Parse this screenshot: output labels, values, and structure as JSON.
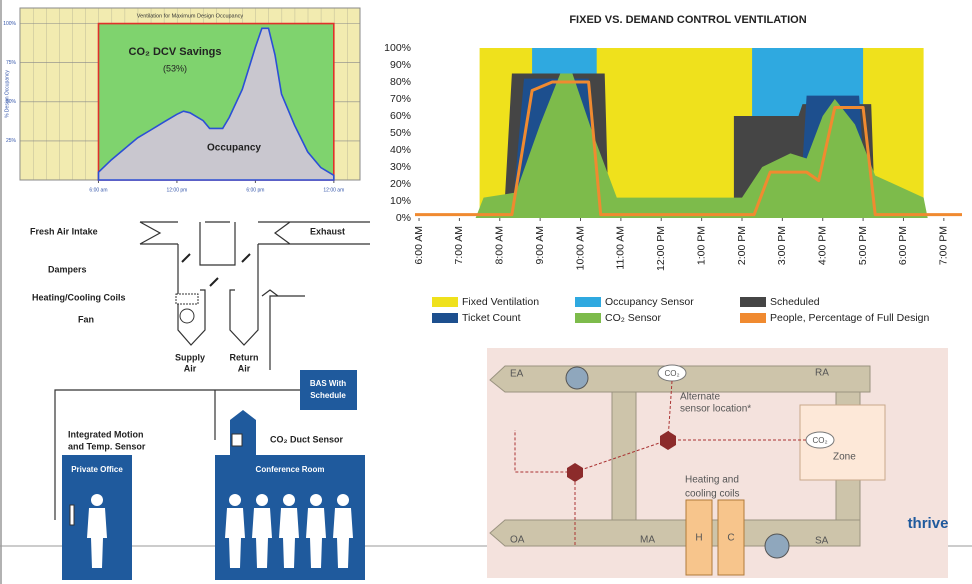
{
  "chart_data": [
    {
      "type": "area",
      "title": "Ventilation for Maximum Design Occupancy",
      "y_label": "% Design Occupancy",
      "annotations": [
        "CO₂ DCV Savings",
        "(53%)",
        "Occupancy"
      ],
      "xlim": [
        0,
        26
      ],
      "ylim": [
        0,
        110
      ],
      "xticks": [
        {
          "value": 6,
          "label": "6:00 am"
        },
        {
          "value": 12,
          "label": "12:00 pm"
        },
        {
          "value": 18,
          "label": "6:00 pm"
        },
        {
          "value": 24,
          "label": "12:00 am"
        }
      ],
      "yticks": [
        {
          "value": 25,
          "label": "25%"
        },
        {
          "value": 50,
          "label": "50%"
        },
        {
          "value": 75,
          "label": "75%"
        },
        {
          "value": 100,
          "label": "100%"
        }
      ],
      "grid": true,
      "series": [
        {
          "color": "#7fd36e",
          "edge": "#e0302a",
          "x": [
            6,
            6,
            24,
            24
          ],
          "values": [
            0,
            100,
            100,
            0
          ]
        },
        {
          "color": "#c9c7cf",
          "edge": "#2b4fd6",
          "x": [
            6,
            7,
            8,
            9,
            10,
            11,
            12,
            12.5,
            13,
            14,
            14.5,
            15.5,
            16,
            17,
            18,
            18.5,
            19,
            19.5,
            20,
            21,
            22,
            23,
            24
          ],
          "values": [
            5,
            13,
            20,
            27,
            32,
            37,
            42,
            44,
            43,
            38,
            33,
            33,
            40,
            58,
            85,
            97,
            97,
            80,
            55,
            35,
            18,
            8,
            3
          ]
        }
      ]
    },
    {
      "type": "area",
      "title": "FIXED VS. DEMAND CONTROL VENTILATION",
      "xlim": [
        5.9,
        19.45
      ],
      "ylim": [
        0,
        100
      ],
      "grid": false,
      "xticks": [
        {
          "value": 6,
          "label": "6:00 AM"
        },
        {
          "value": 7,
          "label": "7:00 AM"
        },
        {
          "value": 8,
          "label": "8:00 AM"
        },
        {
          "value": 9,
          "label": "9:00 AM"
        },
        {
          "value": 10,
          "label": "10:00 AM"
        },
        {
          "value": 11,
          "label": "11:00 AM"
        },
        {
          "value": 12,
          "label": "12:00 PM"
        },
        {
          "value": 13,
          "label": "1:00 PM"
        },
        {
          "value": 14,
          "label": "2:00 PM"
        },
        {
          "value": 15,
          "label": "3:00 PM"
        },
        {
          "value": 16,
          "label": "4:00 PM"
        },
        {
          "value": 17,
          "label": "5:00 PM"
        },
        {
          "value": 18,
          "label": "6:00 PM"
        },
        {
          "value": 19,
          "label": "7:00 PM"
        }
      ],
      "yticks": [
        {
          "value": 0,
          "label": "0%"
        },
        {
          "value": 10,
          "label": "10%"
        },
        {
          "value": 20,
          "label": "20%"
        },
        {
          "value": 30,
          "label": "30%"
        },
        {
          "value": 40,
          "label": "40%"
        },
        {
          "value": 50,
          "label": "50%"
        },
        {
          "value": 60,
          "label": "60%"
        },
        {
          "value": 70,
          "label": "70%"
        },
        {
          "value": 80,
          "label": "80%"
        },
        {
          "value": 90,
          "label": "90%"
        },
        {
          "value": 100,
          "label": "100%"
        }
      ],
      "series": [
        {
          "name": "Fixed Ventilation",
          "color": "#efe11c",
          "x": [
            5.9,
            7.5,
            7.5,
            18.5,
            18.5,
            19.45
          ],
          "values": [
            0,
            0,
            100,
            100,
            0,
            0
          ]
        },
        {
          "name": "Occupancy Sensor",
          "color": "#2fa9e0",
          "x": [
            5.9,
            8.8,
            8.8,
            10.4,
            10.4,
            14.25,
            14.25,
            17,
            17,
            19.45
          ],
          "values": [
            0,
            0,
            100,
            100,
            0,
            0,
            100,
            100,
            0,
            0
          ]
        },
        {
          "name": "Scheduled",
          "color": "#454545",
          "x": [
            5.9,
            8.1,
            8.3,
            10.6,
            10.7,
            13.8,
            13.8,
            15.4,
            15.5,
            17.2,
            17.3,
            19.45
          ],
          "values": [
            0,
            0,
            85,
            85,
            0,
            0,
            60,
            60,
            67,
            67,
            0,
            0
          ]
        },
        {
          "name": "Ticket Count",
          "color": "#1d4f8e",
          "x": [
            5.9,
            8.3,
            8.6,
            10.2,
            10.4,
            14.5,
            14.7,
            15.5,
            15.6,
            16.9,
            17.1,
            19.45
          ],
          "values": [
            0,
            0,
            82,
            82,
            0,
            0,
            32,
            32,
            72,
            72,
            0,
            0
          ]
        },
        {
          "name": "CO₂ Sensor",
          "color": "#7dbb4b",
          "x": [
            5.9,
            7.4,
            7.6,
            8.4,
            9.0,
            9.5,
            9.8,
            10.3,
            10.9,
            14.0,
            14.5,
            15.2,
            15.6,
            16.0,
            16.3,
            16.8,
            17.3,
            18.5,
            18.6,
            19.45
          ],
          "values": [
            0,
            0,
            12,
            15,
            55,
            85,
            85,
            50,
            12,
            12,
            30,
            38,
            35,
            60,
            70,
            55,
            25,
            12,
            0,
            0
          ]
        },
        {
          "name": "People, Percentage of Full Design",
          "color": "#f08a30",
          "kind": "line",
          "x": [
            5.9,
            8.3,
            8.8,
            9.3,
            10.2,
            10.5,
            14.3,
            14.7,
            15.6,
            15.9,
            16.3,
            17.0,
            17.3,
            19.45
          ],
          "values": [
            2,
            2,
            75,
            80,
            80,
            2,
            2,
            27,
            27,
            22,
            65,
            65,
            2,
            2
          ]
        }
      ]
    }
  ],
  "system_diagram": {
    "fresh_air_intake": "Fresh Air Intake",
    "exhaust": "Exhaust",
    "dampers": "Dampers",
    "coils": "Heating/Cooling Coils",
    "fan": "Fan",
    "supply_air": [
      "Supply",
      "Air"
    ],
    "return_air": [
      "Return",
      "Air"
    ],
    "bas": [
      "BAS With",
      "Schedule"
    ],
    "motion_sensor": [
      "Integrated Motion",
      "and Temp. Sensor"
    ],
    "private_office": "Private Office",
    "duct_sensor": "CO₂ Duct Sensor",
    "conference_room": "Conference Room"
  },
  "ahu_diagram": {
    "ea": "EA",
    "co2_duct": "CO₂",
    "ra": "RA",
    "alternate": [
      "Alternate",
      "sensor location*"
    ],
    "co2_zone": "CO₂",
    "zone": "Zone",
    "coils": [
      "Heating and",
      "cooling coils"
    ],
    "h": "H",
    "c": "C",
    "oa": "OA",
    "ma": "MA",
    "sa": "SA"
  },
  "logo": "thrive"
}
